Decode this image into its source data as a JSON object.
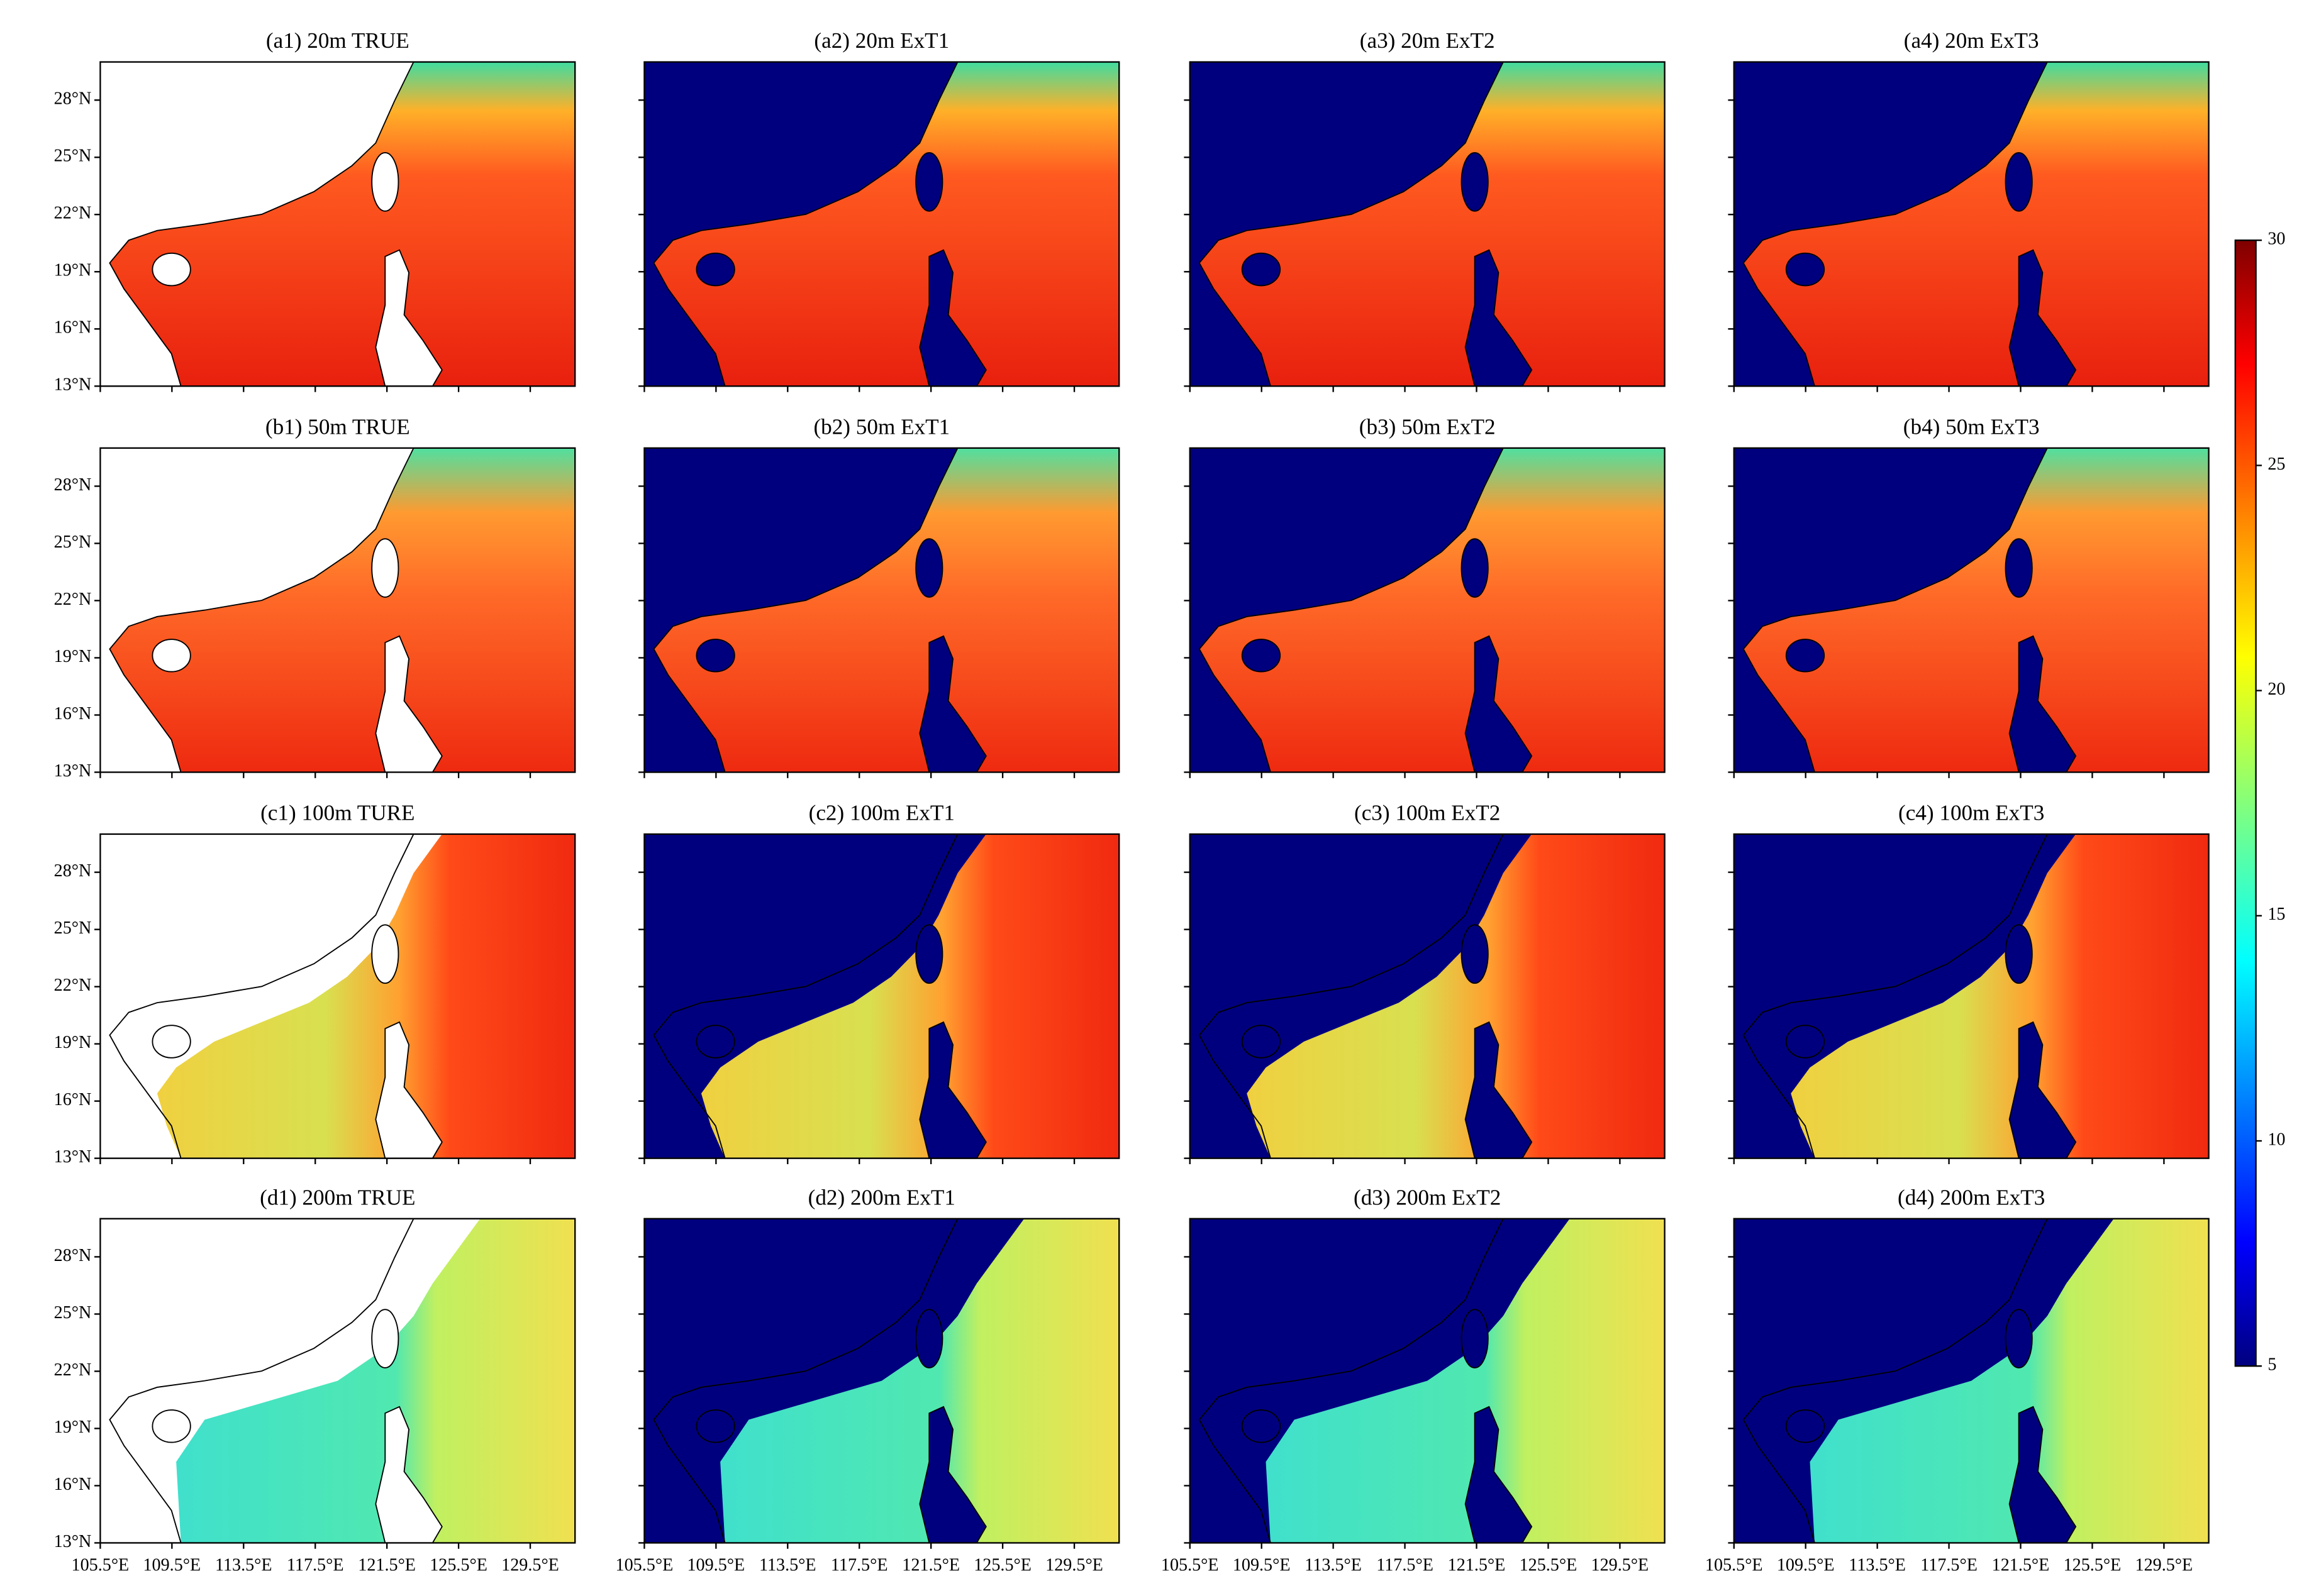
{
  "panels": [
    {
      "title": "(a1) 20m TRUE"
    },
    {
      "title": "(a2) 20m ExT1"
    },
    {
      "title": "(a3) 20m ExT2"
    },
    {
      "title": "(a4) 20m ExT3"
    },
    {
      "title": "(b1) 50m TRUE"
    },
    {
      "title": "(b2) 50m ExT1"
    },
    {
      "title": "(b3) 50m ExT2"
    },
    {
      "title": "(b4) 50m ExT3"
    },
    {
      "title": "(c1) 100m TURE"
    },
    {
      "title": "(c2) 100m ExT1"
    },
    {
      "title": "(c3) 100m ExT2"
    },
    {
      "title": "(c4) 100m ExT3"
    },
    {
      "title": "(d1) 200m TRUE"
    },
    {
      "title": "(d2) 200m ExT1"
    },
    {
      "title": "(d3) 200m ExT2"
    },
    {
      "title": "(d4) 200m ExT3"
    }
  ],
  "lat_range": [
    13,
    30
  ],
  "lat_ticks": [
    {
      "value": 13,
      "label": "13°N"
    },
    {
      "value": 16,
      "label": "16°N"
    },
    {
      "value": 19,
      "label": "19°N"
    },
    {
      "value": 22,
      "label": "22°N"
    },
    {
      "value": 25,
      "label": "25°N"
    },
    {
      "value": 28,
      "label": "28°N"
    }
  ],
  "lon_range": [
    105.5,
    132
  ],
  "lon_ticks": [
    {
      "value": 105.5,
      "label": "105.5°E"
    },
    {
      "value": 109.5,
      "label": "109.5°E"
    },
    {
      "value": 113.5,
      "label": "113.5°E"
    },
    {
      "value": 117.5,
      "label": "117.5°E"
    },
    {
      "value": 121.5,
      "label": "121.5°E"
    },
    {
      "value": 125.5,
      "label": "125.5°E"
    },
    {
      "value": 129.5,
      "label": "129.5°E"
    }
  ],
  "colorbar": {
    "range": [
      5,
      30
    ],
    "ticks": [
      5,
      10,
      15,
      20,
      25,
      30
    ]
  }
}
